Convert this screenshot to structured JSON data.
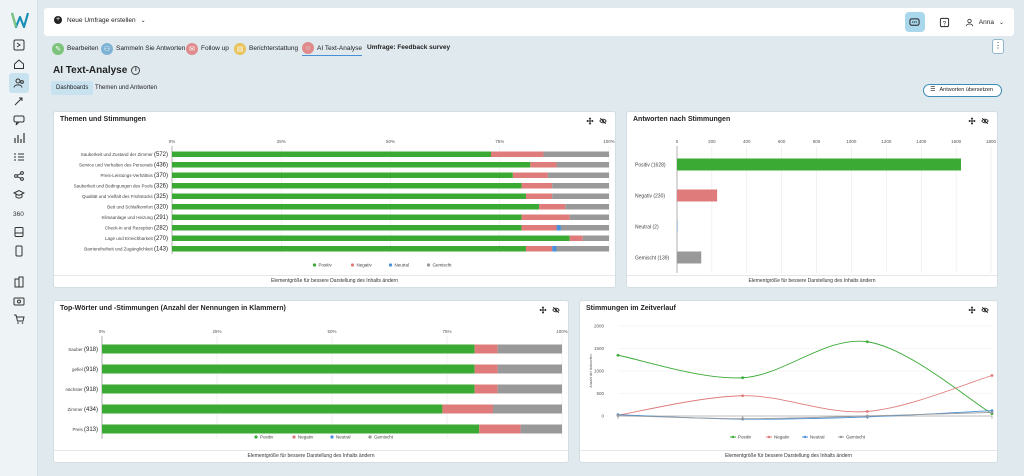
{
  "app": {
    "create_label": "Neue Umfrage erstellen",
    "user": "Anna"
  },
  "nav_tabs": [
    {
      "label": "Bearbeiten",
      "color": "#7cc47c",
      "icon": "edit-icon"
    },
    {
      "label": "Sammeln Sie Antworten",
      "color": "#7fb3d5",
      "icon": "collect-icon"
    },
    {
      "label": "Follow up",
      "color": "#e08b8b",
      "icon": "followup-icon"
    },
    {
      "label": "Berichterstattung",
      "color": "#e8c35a",
      "icon": "report-icon"
    },
    {
      "label": "AI Text-Analyse",
      "color": "#e08b8b",
      "icon": "ai-icon"
    }
  ],
  "survey_title": "Umfrage: Feedback survey",
  "page_title": "AI Text-Analyse",
  "subtabs": [
    "Dashboards",
    "Themen und Antworten"
  ],
  "translate_label": "Antworten übersetzen",
  "footer_label": "Elementgröße für bessere Darstellung des Inhalts ändern",
  "colors": {
    "positive": "#3aaa35",
    "negative": "#e07b7b",
    "neutral": "#4a90d9",
    "mixed": "#999999"
  },
  "legend": [
    "Positiv",
    "Negativ",
    "Neutral",
    "Gemischt"
  ],
  "cards": {
    "themes": {
      "title": "Themen und Stimmungen"
    },
    "sentiments": {
      "title": "Antworten nach Stimmungen"
    },
    "topwords": {
      "title": "Top-Wörter und -Stimmungen (Anzahl der Nennungen in Klammern)"
    },
    "timeline": {
      "title": "Stimmungen im Zeitverlauf"
    }
  },
  "chart_data": [
    {
      "type": "bar",
      "stacked": "percent",
      "orientation": "horizontal",
      "title": "Themen und Stimmungen",
      "x_ticks": [
        "0%",
        "25%",
        "50%",
        "75%",
        "100%"
      ],
      "categories": [
        "Sauberkeit und Zustand der Zimmer",
        "Service und Verhalten des Personals",
        "Preis-Leistungs-Verhältnis",
        "Sauberkeit und Bedingungen des Pools",
        "Qualität und Vielfalt des Frühstücks",
        "Bett und Schlafkomfort",
        "Klimaanlage und Heizung",
        "Check-in und Rezeption",
        "Lage und Erreichbarkeit",
        "Barrierefreiheit und Zugänglichkeit"
      ],
      "counts": [
        "(572)",
        "(436)",
        "(370)",
        "(326)",
        "(325)",
        "(320)",
        "(291)",
        "(282)",
        "(270)",
        "(143)"
      ],
      "series": [
        {
          "name": "Positiv",
          "values": [
            73,
            82,
            78,
            80,
            81,
            84,
            80,
            80,
            91,
            81
          ]
        },
        {
          "name": "Negativ",
          "values": [
            12,
            6,
            8,
            7,
            6,
            6,
            11,
            8,
            3,
            6
          ]
        },
        {
          "name": "Neutral",
          "values": [
            0,
            0,
            0,
            0,
            0,
            0,
            0,
            1,
            0,
            1
          ]
        },
        {
          "name": "Gemischt",
          "values": [
            15,
            12,
            14,
            13,
            13,
            10,
            9,
            11,
            6,
            12
          ]
        }
      ],
      "legend_position": "bottom"
    },
    {
      "type": "bar",
      "orientation": "horizontal",
      "title": "Antworten nach Stimmungen",
      "x_ticks": [
        "0",
        "200",
        "400",
        "600",
        "800",
        "1000",
        "1200",
        "1400",
        "1600",
        "1800"
      ],
      "xlim": [
        0,
        1800
      ],
      "categories": [
        "Positiv",
        "Negativ",
        "Neutral",
        "Gemischt"
      ],
      "counts": [
        "(1628)",
        "(230)",
        "(2)",
        "(139)"
      ],
      "values": [
        1628,
        230,
        2,
        139
      ],
      "colors": [
        "#3aaa35",
        "#e07b7b",
        "#4a90d9",
        "#999999"
      ]
    },
    {
      "type": "bar",
      "stacked": "percent",
      "orientation": "horizontal",
      "title": "Top-Wörter und -Stimmungen (Anzahl der Nennungen in Klammern)",
      "x_ticks": [
        "0%",
        "25%",
        "50%",
        "75%",
        "100%"
      ],
      "categories": [
        "Sauber",
        "gefiel",
        "nächster",
        "Zimmer",
        "Preis"
      ],
      "counts": [
        "(918)",
        "(918)",
        "(918)",
        "(434)",
        "(313)"
      ],
      "series": [
        {
          "name": "Positiv",
          "values": [
            81,
            81,
            81,
            74,
            82
          ]
        },
        {
          "name": "Negativ",
          "values": [
            5,
            5,
            5,
            11,
            9
          ]
        },
        {
          "name": "Neutral",
          "values": [
            0,
            0,
            0,
            0,
            0
          ]
        },
        {
          "name": "Gemischt",
          "values": [
            14,
            14,
            14,
            15,
            9
          ]
        }
      ],
      "legend_position": "bottom"
    },
    {
      "type": "line",
      "title": "Stimmungen im Zeitverlauf",
      "ylabel": "Anzahl der Antworten",
      "y_ticks": [
        "0",
        "500",
        "1000",
        "1500",
        "2000"
      ],
      "ylim": [
        0,
        2000
      ],
      "x": [
        0,
        1,
        2,
        3
      ],
      "series": [
        {
          "name": "Positiv",
          "values": [
            1350,
            850,
            1650,
            50
          ]
        },
        {
          "name": "Negativ",
          "values": [
            20,
            450,
            100,
            900
          ]
        },
        {
          "name": "Neutral",
          "values": [
            30,
            -70,
            -20,
            120
          ]
        },
        {
          "name": "Gemischt",
          "values": [
            10,
            -60,
            0,
            80
          ]
        }
      ],
      "legend_position": "bottom"
    }
  ]
}
